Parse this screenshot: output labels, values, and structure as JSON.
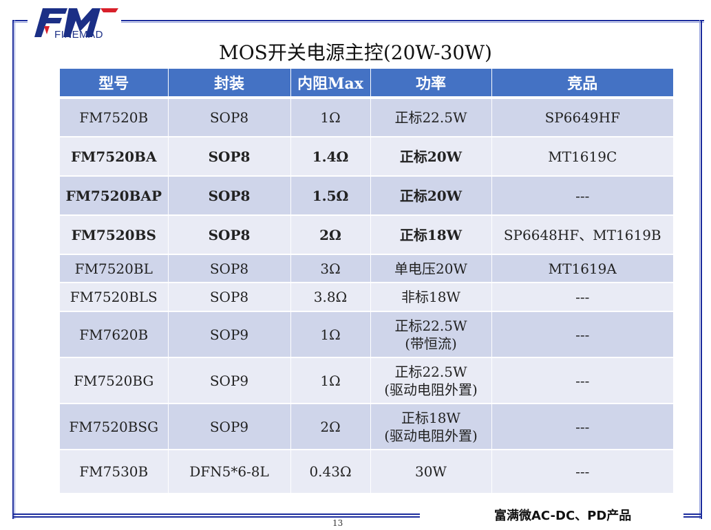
{
  "brand": {
    "logo_mark": "FM",
    "logo_text": "FINEMAD",
    "brand_color": "#1b2f86",
    "accent_color": "#d8202a"
  },
  "title": "MOS开关电源主控(20W-30W)",
  "table": {
    "header_color": "#4472c4",
    "headers": [
      "型号",
      "封装",
      "内阻Max",
      "功率",
      "竞品"
    ],
    "rows": [
      {
        "model": "FM7520B",
        "package": "SOP8",
        "rds": "1Ω",
        "power": [
          "正标22.5W"
        ],
        "competitor": "SP6649HF",
        "bold": false
      },
      {
        "model": "FM7520BA",
        "package": "SOP8",
        "rds": "1.4Ω",
        "power": [
          "正标20W"
        ],
        "competitor": "MT1619C",
        "bold": true
      },
      {
        "model": "FM7520BAP",
        "package": "SOP8",
        "rds": "1.5Ω",
        "power": [
          "正标20W"
        ],
        "competitor": "---",
        "bold": true
      },
      {
        "model": "FM7520BS",
        "package": "SOP8",
        "rds": "2Ω",
        "power": [
          "正标18W"
        ],
        "competitor": "SP6648HF、MT1619B",
        "bold": true
      },
      {
        "model": "FM7520BL",
        "package": "SOP8",
        "rds": "3Ω",
        "power": [
          "单电压20W"
        ],
        "competitor": "MT1619A",
        "bold": false
      },
      {
        "model": "FM7520BLS",
        "package": "SOP8",
        "rds": "3.8Ω",
        "power": [
          "非标18W"
        ],
        "competitor": "---",
        "bold": false
      },
      {
        "model": "FM7620B",
        "package": "SOP9",
        "rds": "1Ω",
        "power": [
          "正标22.5W",
          "(带恒流)"
        ],
        "competitor": "---",
        "bold": false
      },
      {
        "model": "FM7520BG",
        "package": "SOP9",
        "rds": "1Ω",
        "power": [
          "正标22.5W",
          "(驱动电阻外置)"
        ],
        "competitor": "---",
        "bold": false
      },
      {
        "model": "FM7520BSG",
        "package": "SOP9",
        "rds": "2Ω",
        "power": [
          "正标18W",
          "(驱动电阻外置)"
        ],
        "competitor": "---",
        "bold": false
      },
      {
        "model": "FM7530B",
        "package": "DFN5*6-8L",
        "rds": "0.43Ω",
        "power": [
          "30W"
        ],
        "competitor": "---",
        "bold": false
      }
    ]
  },
  "page_number": "13",
  "footer": "富满微AC-DC、PD产品"
}
